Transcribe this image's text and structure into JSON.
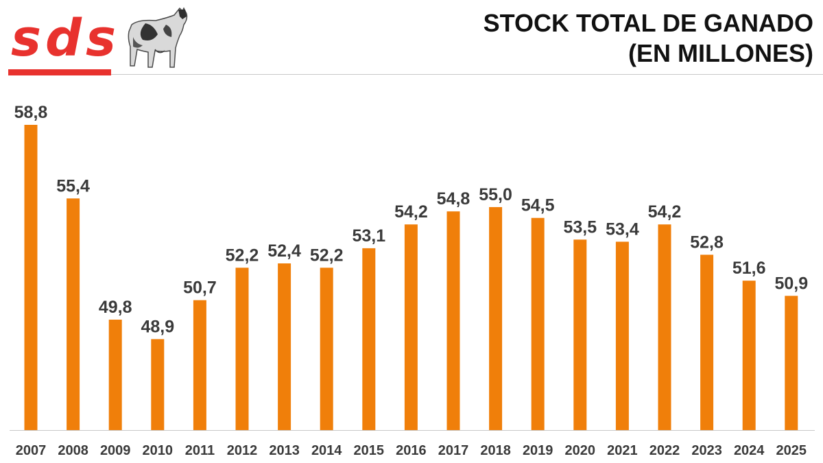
{
  "brand": {
    "logo_text": "sds",
    "accent_color": "#e8322e"
  },
  "header": {
    "title_line1": "STOCK TOTAL DE GANADO",
    "title_line2": "(EN MILLONES)"
  },
  "chart_data": {
    "type": "bar",
    "title": "STOCK TOTAL DE GANADO (EN MILLONES)",
    "categories": [
      "2007",
      "2008",
      "2009",
      "2010",
      "2011",
      "2012",
      "2013",
      "2014",
      "2015",
      "2016",
      "2017",
      "2018",
      "2019",
      "2020",
      "2021",
      "2022",
      "2023",
      "2024",
      "2025"
    ],
    "values": [
      58.8,
      55.4,
      49.8,
      48.9,
      50.7,
      52.2,
      52.4,
      52.2,
      53.1,
      54.2,
      54.8,
      55.0,
      54.5,
      53.5,
      53.4,
      54.2,
      52.8,
      51.6,
      50.9
    ],
    "data_labels": [
      "58,8",
      "55,4",
      "49,8",
      "48,9",
      "50,7",
      "52,2",
      "52,4",
      "52,2",
      "53,1",
      "54,2",
      "54,8",
      "55,0",
      "54,5",
      "53,5",
      "53,4",
      "54,2",
      "52,8",
      "51,6",
      "50,9"
    ],
    "bar_color": "#f07f0a",
    "ylim": [
      44.7,
      58.8
    ],
    "grid": false,
    "legend": "none"
  }
}
